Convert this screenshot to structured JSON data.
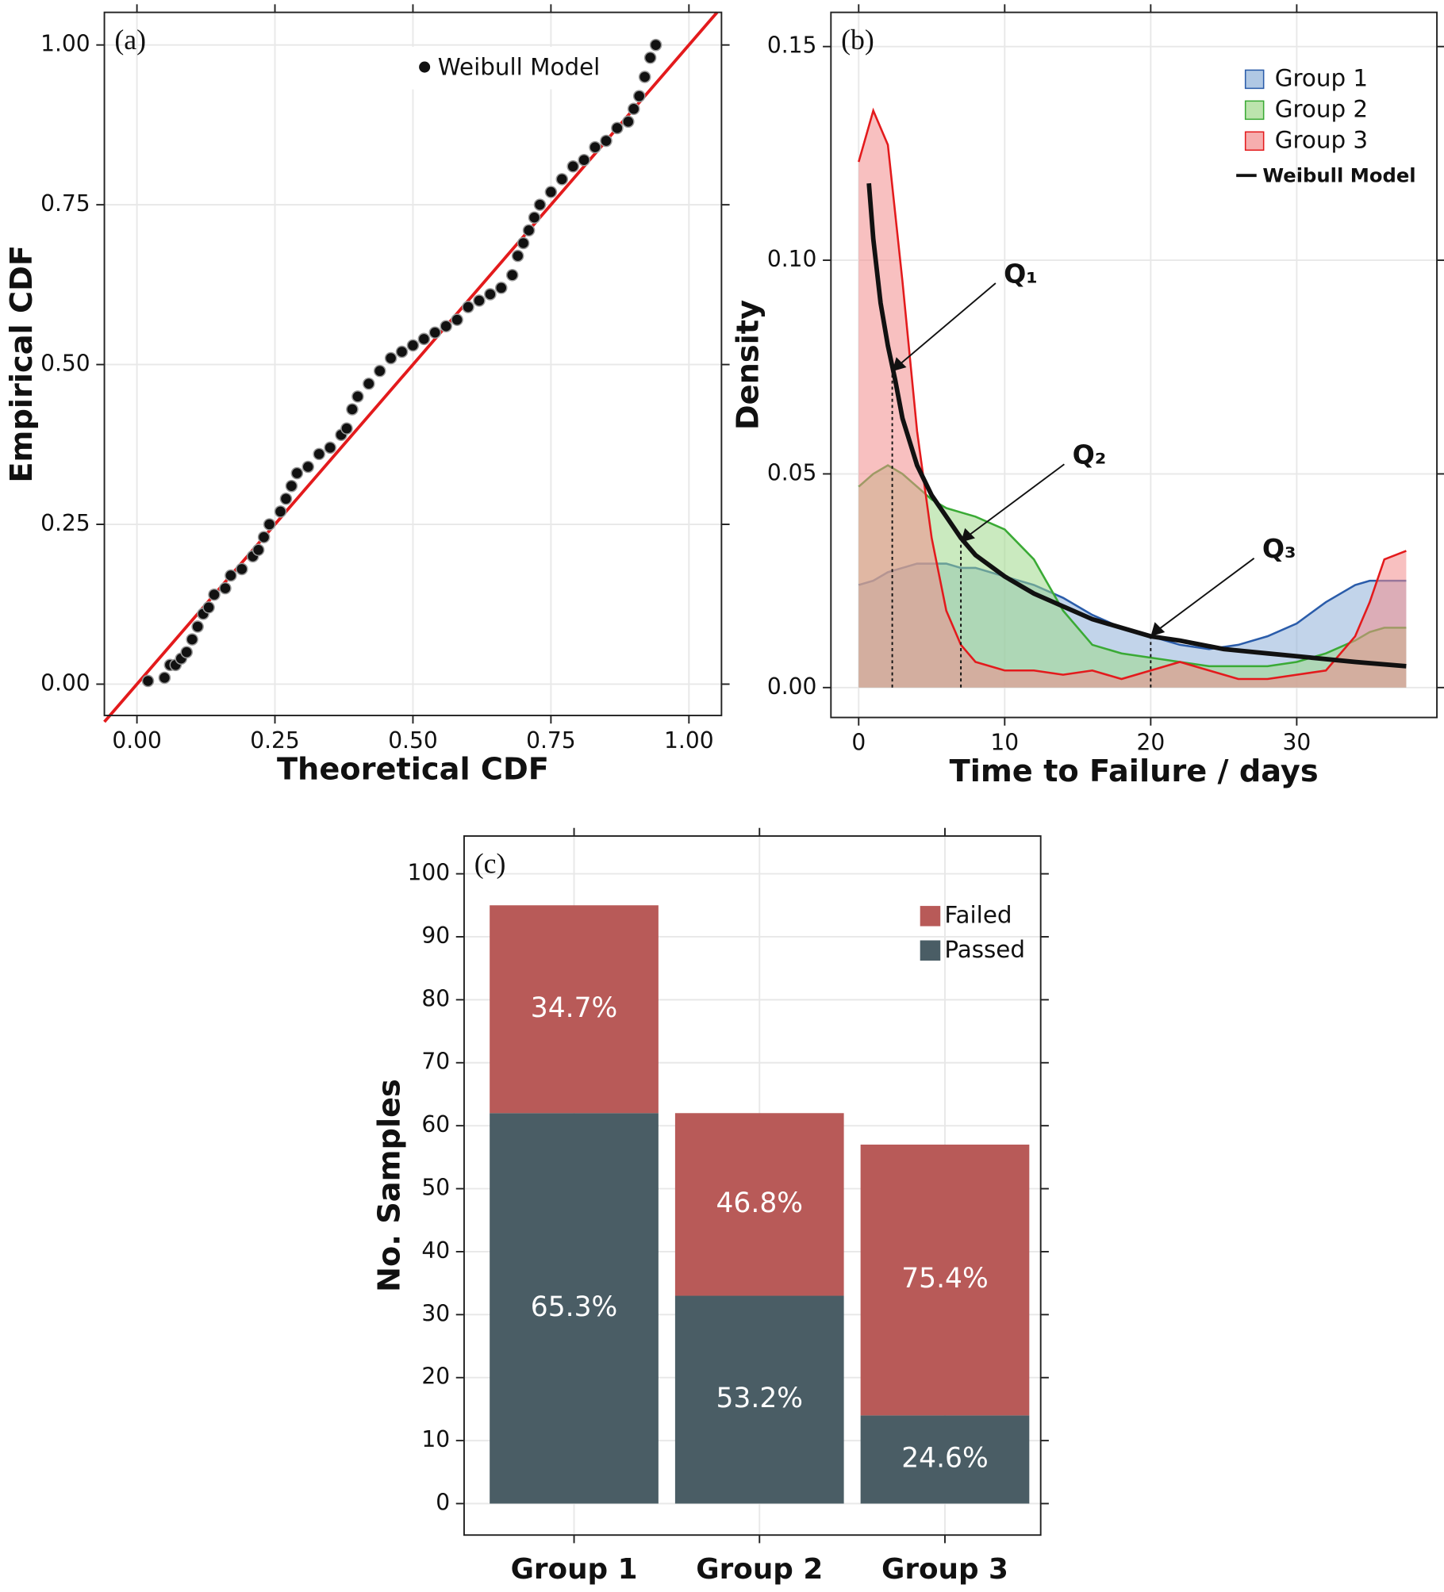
{
  "chart_data": [
    {
      "type": "scatter",
      "label": "(a)",
      "x_label": "Theoretical  CDF",
      "y_label": "Empirical  CDF",
      "xlim": [
        -0.059,
        1.059
      ],
      "ylim": [
        -0.049,
        1.051
      ],
      "xticks": [
        {
          "value": 0,
          "label": "0.00"
        },
        {
          "value": 0.25,
          "label": "0.25"
        },
        {
          "value": 0.5,
          "label": "0.50"
        },
        {
          "value": 0.75,
          "label": "0.75"
        },
        {
          "value": 1,
          "label": "1.00"
        }
      ],
      "yticks": [
        {
          "value": 0,
          "label": "0.00"
        },
        {
          "value": 0.25,
          "label": "0.25"
        },
        {
          "value": 0.5,
          "label": "0.50"
        },
        {
          "value": 0.75,
          "label": "0.75"
        },
        {
          "value": 1,
          "label": "1.00"
        }
      ],
      "grid": true,
      "reference_line": {
        "color": "#e31a1c",
        "x": [
          -0.059,
          1.051
        ],
        "values": [
          -0.059,
          1.051
        ]
      },
      "series": [
        {
          "name": "Weibull Model",
          "color": "#111111",
          "x": [
            0.02,
            0.05,
            0.06,
            0.07,
            0.08,
            0.09,
            0.1,
            0.11,
            0.12,
            0.13,
            0.14,
            0.16,
            0.17,
            0.19,
            0.21,
            0.22,
            0.23,
            0.24,
            0.26,
            0.27,
            0.28,
            0.29,
            0.31,
            0.33,
            0.35,
            0.37,
            0.38,
            0.39,
            0.4,
            0.42,
            0.44,
            0.46,
            0.48,
            0.5,
            0.52,
            0.54,
            0.56,
            0.58,
            0.6,
            0.62,
            0.64,
            0.66,
            0.68,
            0.69,
            0.7,
            0.71,
            0.72,
            0.73,
            0.75,
            0.77,
            0.79,
            0.81,
            0.83,
            0.85,
            0.87,
            0.89,
            0.9,
            0.91,
            0.92,
            0.93,
            0.94
          ],
          "values": [
            0.005,
            0.01,
            0.03,
            0.03,
            0.04,
            0.05,
            0.07,
            0.09,
            0.11,
            0.12,
            0.14,
            0.15,
            0.17,
            0.18,
            0.2,
            0.21,
            0.23,
            0.25,
            0.27,
            0.29,
            0.31,
            0.33,
            0.34,
            0.36,
            0.37,
            0.39,
            0.4,
            0.43,
            0.45,
            0.47,
            0.49,
            0.51,
            0.52,
            0.53,
            0.54,
            0.55,
            0.56,
            0.57,
            0.59,
            0.6,
            0.61,
            0.62,
            0.64,
            0.67,
            0.69,
            0.71,
            0.73,
            0.75,
            0.77,
            0.79,
            0.81,
            0.82,
            0.84,
            0.85,
            0.87,
            0.88,
            0.9,
            0.92,
            0.95,
            0.98,
            1.0
          ]
        }
      ]
    },
    {
      "type": "area",
      "label": "(b)",
      "x_label": "Time to  Failure / days",
      "y_label": "Density",
      "xlim": [
        -1.9,
        39.6
      ],
      "ylim": [
        -0.007,
        0.158
      ],
      "xticks": [
        0,
        10,
        20,
        30
      ],
      "yticks": [
        {
          "value": 0,
          "label": "0.00"
        },
        {
          "value": 0.05,
          "label": "0.05"
        },
        {
          "value": 0.1,
          "label": "0.10"
        },
        {
          "value": 0.15,
          "label": "0.15"
        }
      ],
      "grid": true,
      "x": [
        0,
        1,
        2,
        3,
        4,
        5,
        6,
        7,
        8,
        10,
        12,
        14,
        16,
        18,
        20,
        22,
        24,
        26,
        28,
        30,
        32,
        34,
        35,
        36,
        37.5
      ],
      "series": [
        {
          "name": "Group 1",
          "color": "#2a5caa",
          "fill": "#8fb0d8",
          "values": [
            0.024,
            0.025,
            0.027,
            0.028,
            0.029,
            0.029,
            0.029,
            0.028,
            0.028,
            0.026,
            0.024,
            0.021,
            0.017,
            0.014,
            0.012,
            0.01,
            0.009,
            0.01,
            0.012,
            0.015,
            0.02,
            0.024,
            0.025,
            0.025,
            0.025
          ]
        },
        {
          "name": "Group 2",
          "color": "#3aaa35",
          "fill": "#9fd88a",
          "values": [
            0.047,
            0.05,
            0.052,
            0.05,
            0.047,
            0.044,
            0.042,
            0.041,
            0.04,
            0.037,
            0.03,
            0.018,
            0.01,
            0.008,
            0.007,
            0.006,
            0.005,
            0.005,
            0.005,
            0.006,
            0.008,
            0.011,
            0.013,
            0.014,
            0.014
          ]
        },
        {
          "name": "Group 3",
          "color": "#e31a1c",
          "fill": "#f28c8c",
          "values": [
            0.123,
            0.135,
            0.127,
            0.095,
            0.06,
            0.035,
            0.018,
            0.01,
            0.006,
            0.004,
            0.004,
            0.003,
            0.004,
            0.002,
            0.004,
            0.006,
            0.004,
            0.002,
            0.002,
            0.003,
            0.004,
            0.012,
            0.02,
            0.03,
            0.032
          ]
        },
        {
          "name": "Weibull Model",
          "color": "#111111",
          "mark": "line",
          "x": [
            0.7,
            1,
            1.5,
            2,
            2.5,
            3,
            4,
            5,
            6,
            7,
            8,
            10,
            12,
            14,
            16,
            18,
            20,
            22,
            25,
            28,
            31,
            34,
            37.5
          ],
          "values": [
            0.118,
            0.105,
            0.09,
            0.08,
            0.072,
            0.063,
            0.052,
            0.045,
            0.04,
            0.035,
            0.031,
            0.026,
            0.022,
            0.019,
            0.016,
            0.014,
            0.012,
            0.011,
            0.009,
            0.008,
            0.007,
            0.006,
            0.005
          ]
        }
      ],
      "annotations": [
        {
          "text": "Q₁",
          "x": 2.3,
          "y": 0.074
        },
        {
          "text": "Q₂",
          "x": 7,
          "y": 0.034
        },
        {
          "text": "Q₃",
          "x": 20,
          "y": 0.012
        }
      ]
    },
    {
      "type": "bar",
      "label": "(c)",
      "y_label": "No. Samples",
      "stacked": true,
      "categories": [
        "Group 1",
        "Group 2",
        "Group 3"
      ],
      "ylim": [
        -5,
        106
      ],
      "yticks": [
        0,
        10,
        20,
        30,
        40,
        50,
        60,
        70,
        80,
        90,
        100
      ],
      "grid": true,
      "series": [
        {
          "name": "Passed",
          "color": "#4a5d65",
          "values": [
            62,
            33,
            14
          ],
          "labels": [
            "65.3%",
            "53.2%",
            "24.6%"
          ]
        },
        {
          "name": "Failed",
          "color": "#b85a58",
          "values": [
            33,
            29,
            43
          ],
          "labels": [
            "34.7%",
            "46.8%",
            "75.4%"
          ]
        }
      ]
    }
  ]
}
